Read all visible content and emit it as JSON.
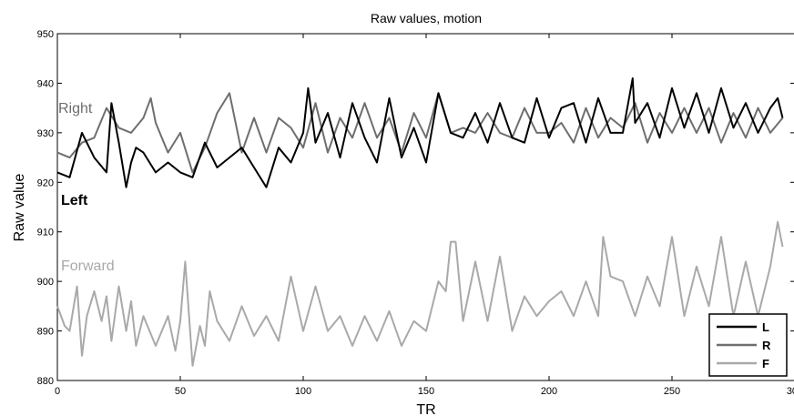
{
  "chart_data": {
    "type": "line",
    "title": "Raw values, motion",
    "xlabel": "TR",
    "ylabel": "Raw value",
    "xlim": [
      0,
      300
    ],
    "ylim": [
      880,
      950
    ],
    "xticks": [
      0,
      50,
      100,
      150,
      200,
      250,
      300
    ],
    "yticks": [
      880,
      890,
      900,
      910,
      920,
      930,
      940,
      950
    ],
    "grid": false,
    "legend_position": "bottom-right",
    "annotations": [
      {
        "text": "Right",
        "series": "R"
      },
      {
        "text": "Left",
        "series": "L"
      },
      {
        "text": "Forward",
        "series": "F"
      }
    ],
    "series": [
      {
        "name": "L",
        "color": "#000000",
        "x": [
          0,
          5,
          10,
          15,
          20,
          22,
          25,
          28,
          30,
          32,
          35,
          40,
          45,
          50,
          55,
          60,
          65,
          70,
          75,
          80,
          85,
          90,
          95,
          100,
          102,
          105,
          110,
          115,
          120,
          125,
          130,
          135,
          140,
          145,
          150,
          155,
          160,
          165,
          170,
          175,
          180,
          185,
          190,
          195,
          200,
          205,
          210,
          215,
          220,
          225,
          230,
          234,
          235,
          240,
          245,
          250,
          255,
          260,
          265,
          270,
          275,
          280,
          285,
          290,
          293,
          295
        ],
        "y": [
          922,
          921,
          930,
          925,
          922,
          936,
          928,
          919,
          924,
          927,
          926,
          922,
          924,
          922,
          921,
          928,
          923,
          925,
          927,
          923,
          919,
          927,
          924,
          930,
          939,
          928,
          934,
          925,
          936,
          929,
          924,
          937,
          925,
          931,
          924,
          938,
          930,
          929,
          934,
          928,
          936,
          929,
          928,
          937,
          929,
          935,
          936,
          928,
          937,
          930,
          930,
          941,
          932,
          936,
          929,
          939,
          931,
          938,
          930,
          939,
          931,
          936,
          930,
          935,
          937,
          933
        ]
      },
      {
        "name": "R",
        "color": "#6e6e6e",
        "x": [
          0,
          5,
          10,
          15,
          20,
          25,
          30,
          35,
          38,
          40,
          45,
          50,
          55,
          60,
          65,
          70,
          75,
          80,
          85,
          90,
          95,
          100,
          105,
          110,
          115,
          120,
          125,
          130,
          135,
          140,
          145,
          150,
          155,
          160,
          165,
          170,
          175,
          180,
          185,
          190,
          195,
          200,
          205,
          210,
          215,
          220,
          225,
          230,
          235,
          240,
          245,
          250,
          255,
          260,
          265,
          270,
          275,
          280,
          285,
          290,
          295
        ],
        "y": [
          926,
          925,
          928,
          929,
          935,
          931,
          930,
          933,
          937,
          932,
          926,
          930,
          922,
          927,
          934,
          938,
          926,
          933,
          926,
          933,
          931,
          927,
          936,
          926,
          933,
          929,
          936,
          929,
          933,
          926,
          934,
          929,
          938,
          930,
          931,
          930,
          934,
          930,
          929,
          935,
          930,
          930,
          932,
          928,
          935,
          929,
          933,
          931,
          936,
          928,
          934,
          930,
          935,
          930,
          935,
          928,
          934,
          929,
          935,
          930,
          933
        ]
      },
      {
        "name": "F",
        "color": "#a9a9a9",
        "x": [
          0,
          3,
          5,
          8,
          10,
          12,
          15,
          18,
          20,
          22,
          25,
          28,
          30,
          32,
          35,
          40,
          45,
          48,
          50,
          52,
          55,
          58,
          60,
          62,
          65,
          70,
          75,
          80,
          85,
          90,
          95,
          100,
          105,
          110,
          115,
          120,
          125,
          130,
          135,
          140,
          145,
          150,
          155,
          158,
          160,
          162,
          165,
          170,
          175,
          180,
          185,
          190,
          195,
          200,
          205,
          210,
          215,
          220,
          222,
          225,
          230,
          235,
          240,
          245,
          250,
          255,
          260,
          265,
          270,
          275,
          280,
          285,
          290,
          293,
          295
        ],
        "y": [
          895,
          891,
          890,
          899,
          885,
          893,
          898,
          892,
          897,
          888,
          899,
          890,
          896,
          887,
          893,
          887,
          893,
          886,
          892,
          904,
          883,
          891,
          887,
          898,
          892,
          888,
          895,
          889,
          893,
          888,
          901,
          890,
          899,
          890,
          893,
          887,
          893,
          888,
          894,
          887,
          892,
          890,
          900,
          898,
          908,
          908,
          892,
          904,
          892,
          905,
          890,
          897,
          893,
          896,
          898,
          893,
          900,
          893,
          909,
          901,
          900,
          893,
          901,
          895,
          909,
          893,
          903,
          895,
          909,
          893,
          904,
          893,
          903,
          912,
          907
        ]
      }
    ]
  }
}
